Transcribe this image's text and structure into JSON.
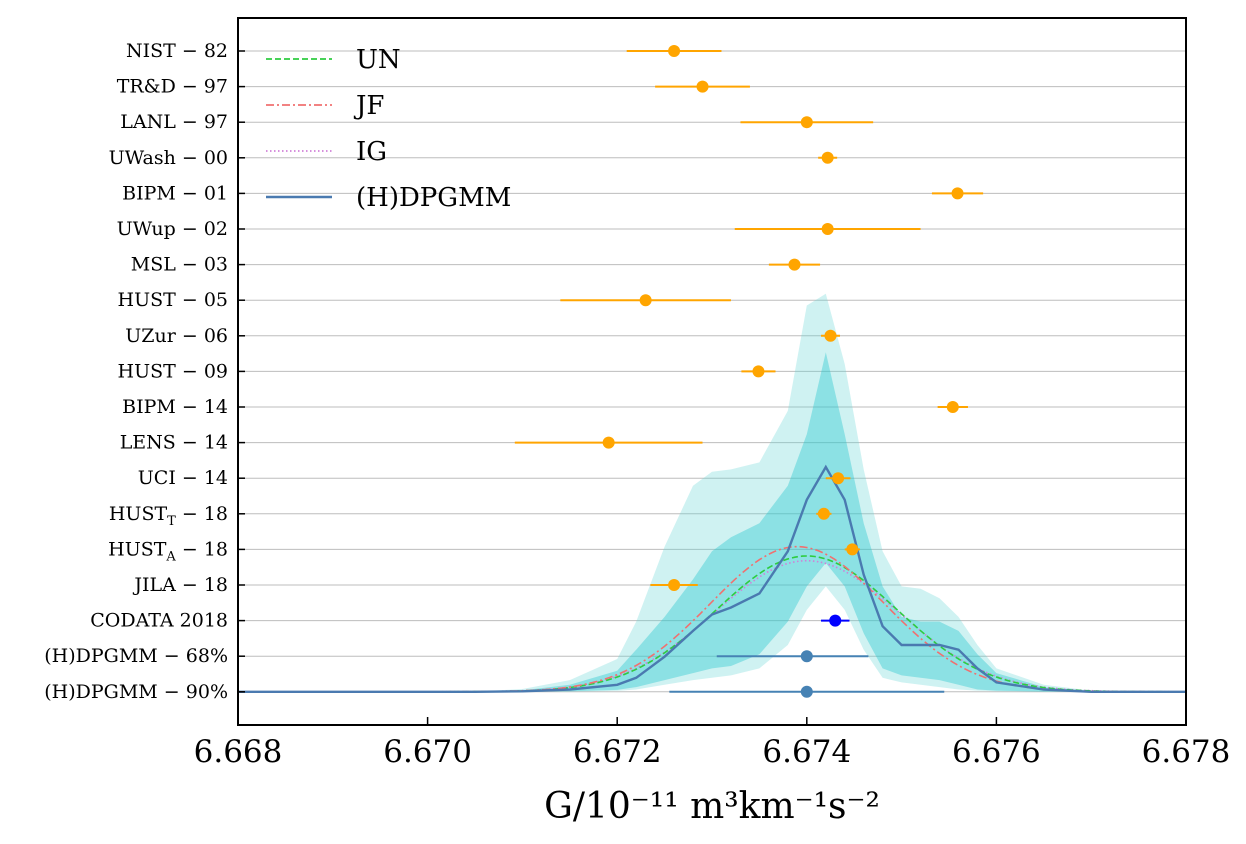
{
  "chart_data": {
    "type": "scatter",
    "xlabel": "G/10⁻¹¹ m³km⁻¹s⁻²",
    "xlim": [
      6.668,
      6.678
    ],
    "x_ticks": [
      "6.668",
      "6.670",
      "6.672",
      "6.674",
      "6.676",
      "6.678"
    ],
    "rows": [
      {
        "label": "NIST − 82",
        "value": 6.6726,
        "err": 0.0005,
        "color": "#ffa500"
      },
      {
        "label": "TR&D − 97",
        "value": 6.6729,
        "err": 0.0005,
        "color": "#ffa500"
      },
      {
        "label": "LANL − 97",
        "value": 6.674,
        "err": 0.0007,
        "color": "#ffa500"
      },
      {
        "label": "UWash − 00",
        "value": 6.67422,
        "err": 0.0001,
        "color": "#ffa500"
      },
      {
        "label": "BIPM − 01",
        "value": 6.67559,
        "err": 0.00027,
        "color": "#ffa500"
      },
      {
        "label": "UWup − 02",
        "value": 6.67422,
        "err": 0.00098,
        "color": "#ffa500"
      },
      {
        "label": "MSL − 03",
        "value": 6.67387,
        "err": 0.00027,
        "color": "#ffa500"
      },
      {
        "label": "HUST − 05",
        "value": 6.6723,
        "err": 0.0009,
        "color": "#ffa500"
      },
      {
        "label": "UZur − 06",
        "value": 6.67425,
        "err": 0.0001,
        "color": "#ffa500"
      },
      {
        "label": "HUST − 09",
        "value": 6.67349,
        "err": 0.00018,
        "color": "#ffa500"
      },
      {
        "label": "BIPM − 14",
        "value": 6.67554,
        "err": 0.00016,
        "color": "#ffa500"
      },
      {
        "label": "LENS − 14",
        "value": 6.67191,
        "err": 0.00099,
        "color": "#ffa500"
      },
      {
        "label": "UCI − 14",
        "value": 6.67433,
        "err": 0.00013,
        "color": "#ffa500"
      },
      {
        "label": "HUST",
        "sub": "T",
        "suffix": " − 18",
        "value": 6.67418,
        "err": 8e-05,
        "color": "#ffa500"
      },
      {
        "label": "HUST",
        "sub": "A",
        "suffix": " − 18",
        "value": 6.67448,
        "err": 8e-05,
        "color": "#ffa500"
      },
      {
        "label": "JILA − 18",
        "value": 6.6726,
        "err": 0.00025,
        "color": "#ffa500"
      },
      {
        "label": "CODATA 2018",
        "value": 6.6743,
        "err": 0.00015,
        "color": "#0000ff"
      },
      {
        "label": "(H)DPGMM − 68%",
        "value": 6.674,
        "err_low": 0.00095,
        "err_high": 0.00065,
        "color": "#4682b4"
      },
      {
        "label": "(H)DPGMM − 90%",
        "value": 6.674,
        "err_low": 0.00145,
        "err_high": 0.00145,
        "color": "#4682b4"
      }
    ],
    "legend": [
      {
        "label": "UN",
        "color": "#2ecc40",
        "style": "dashed"
      },
      {
        "label": "JF",
        "color": "#f07070",
        "style": "dashdot"
      },
      {
        "label": "IG",
        "color": "#d080d8",
        "style": "dotted"
      },
      {
        "label": "(H)DPGMM",
        "color": "#4a7ab0",
        "style": "solid"
      }
    ],
    "density_curves": {
      "x": [
        6.668,
        6.6705,
        6.671,
        6.6715,
        6.672,
        6.6722,
        6.6725,
        6.6728,
        6.673,
        6.6732,
        6.6735,
        6.6738,
        6.674,
        6.6742,
        6.6744,
        6.6746,
        6.6748,
        6.675,
        6.6752,
        6.6754,
        6.6756,
        6.6758,
        6.676,
        6.6765,
        6.677,
        6.678
      ],
      "hdpgmm_median": [
        0,
        0,
        0.002,
        0.01,
        0.03,
        0.06,
        0.15,
        0.26,
        0.33,
        0.36,
        0.42,
        0.6,
        0.82,
        0.96,
        0.82,
        0.5,
        0.28,
        0.2,
        0.2,
        0.2,
        0.18,
        0.1,
        0.04,
        0.01,
        0.0,
        0
      ],
      "band_68_low": [
        0,
        0,
        0,
        0.002,
        0.008,
        0.02,
        0.05,
        0.08,
        0.1,
        0.11,
        0.16,
        0.3,
        0.45,
        0.55,
        0.45,
        0.25,
        0.1,
        0.07,
        0.06,
        0.05,
        0.03,
        0.01,
        0.005,
        0.001,
        0,
        0
      ],
      "band_68_high": [
        0,
        0,
        0.006,
        0.03,
        0.09,
        0.18,
        0.32,
        0.48,
        0.6,
        0.66,
        0.72,
        0.88,
        1.1,
        1.45,
        1.1,
        0.72,
        0.45,
        0.32,
        0.3,
        0.3,
        0.26,
        0.16,
        0.08,
        0.02,
        0.003,
        0
      ],
      "band_90_low": [
        0,
        0,
        0,
        0.001,
        0.004,
        0.01,
        0.03,
        0.05,
        0.06,
        0.07,
        0.1,
        0.2,
        0.35,
        0.45,
        0.35,
        0.18,
        0.06,
        0.04,
        0.03,
        0.02,
        0.01,
        0.005,
        0.002,
        0,
        0,
        0
      ],
      "band_90_high": [
        0,
        0,
        0.012,
        0.05,
        0.14,
        0.3,
        0.62,
        0.88,
        0.94,
        0.95,
        0.98,
        1.2,
        1.65,
        1.7,
        1.4,
        0.95,
        0.6,
        0.45,
        0.44,
        0.4,
        0.32,
        0.2,
        0.1,
        0.03,
        0.005,
        0
      ],
      "un_curve": "Gaussian mean 6.6740, sd 0.00095, peak 0.58",
      "jf_curve": "Gaussian mean 6.6739, sd 0.00092, peak 0.62",
      "ig_curve": "Gaussian mean 6.6740, sd 0.00097, peak 0.56"
    }
  }
}
